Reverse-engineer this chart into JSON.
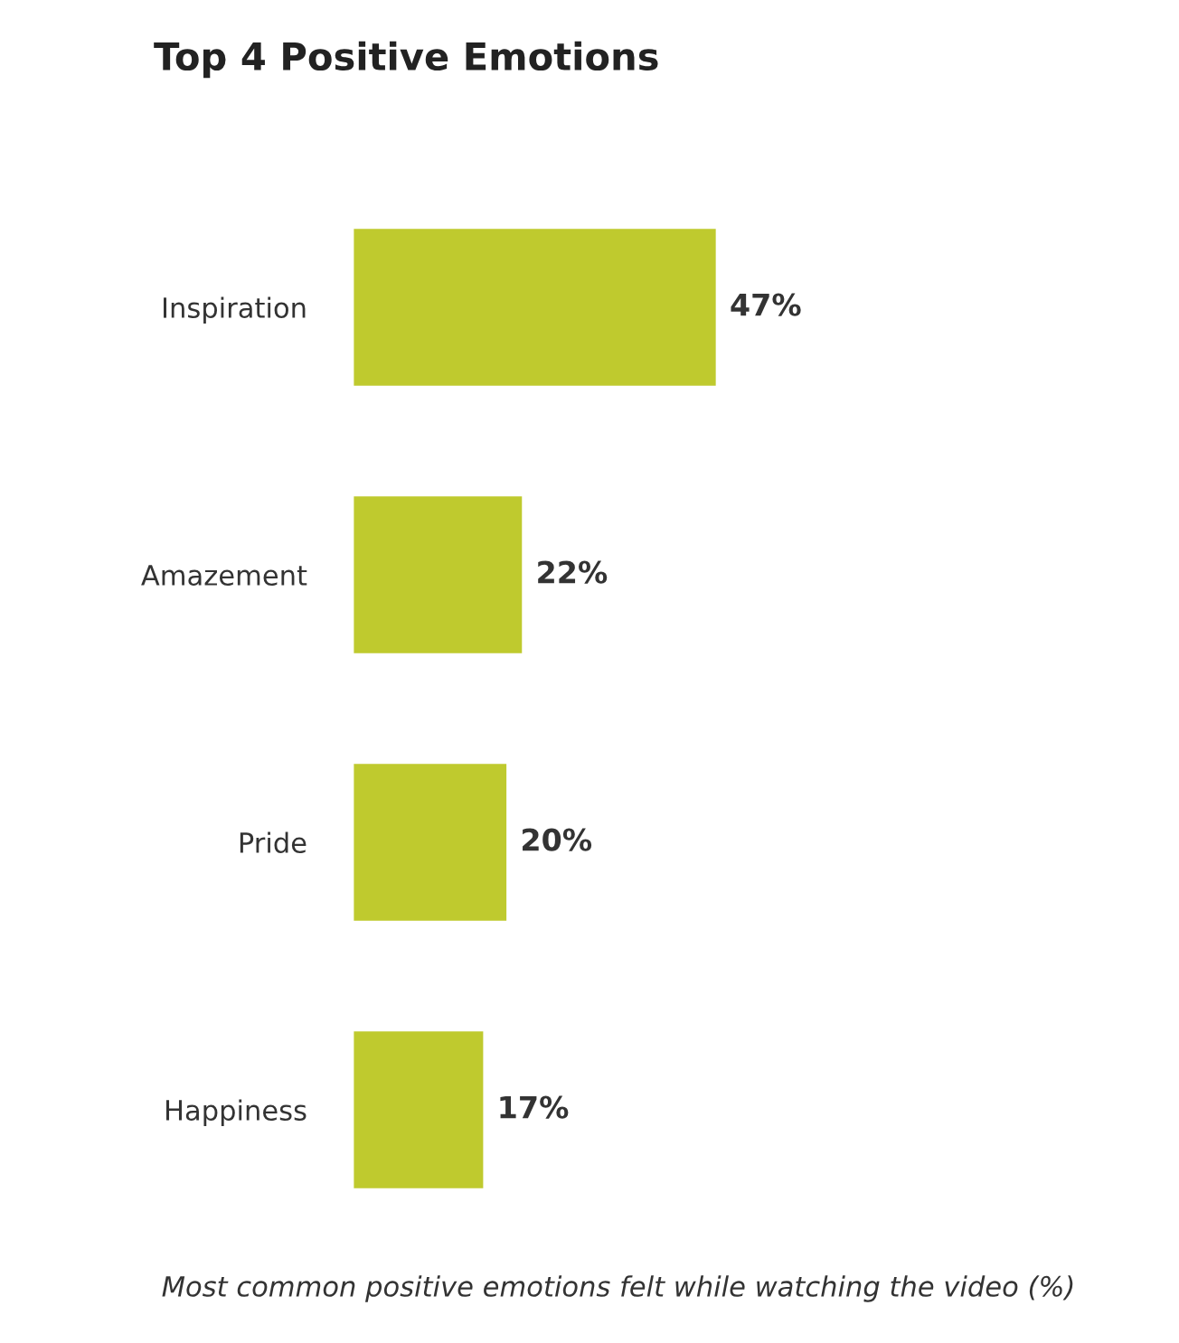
{
  "chart_data": {
    "type": "bar",
    "orientation": "horizontal",
    "title": "Top 4 Positive Emotions",
    "categories": [
      "Inspiration",
      "Amazement",
      "Pride",
      "Happiness"
    ],
    "values": [
      47,
      22,
      20,
      17
    ],
    "value_labels": [
      "47%",
      "22%",
      "20%",
      "17%"
    ],
    "color": "#bfca2e",
    "grid": false,
    "legend": false,
    "annotations": [
      "Most common positive emotions felt while watching the video (%)"
    ]
  }
}
